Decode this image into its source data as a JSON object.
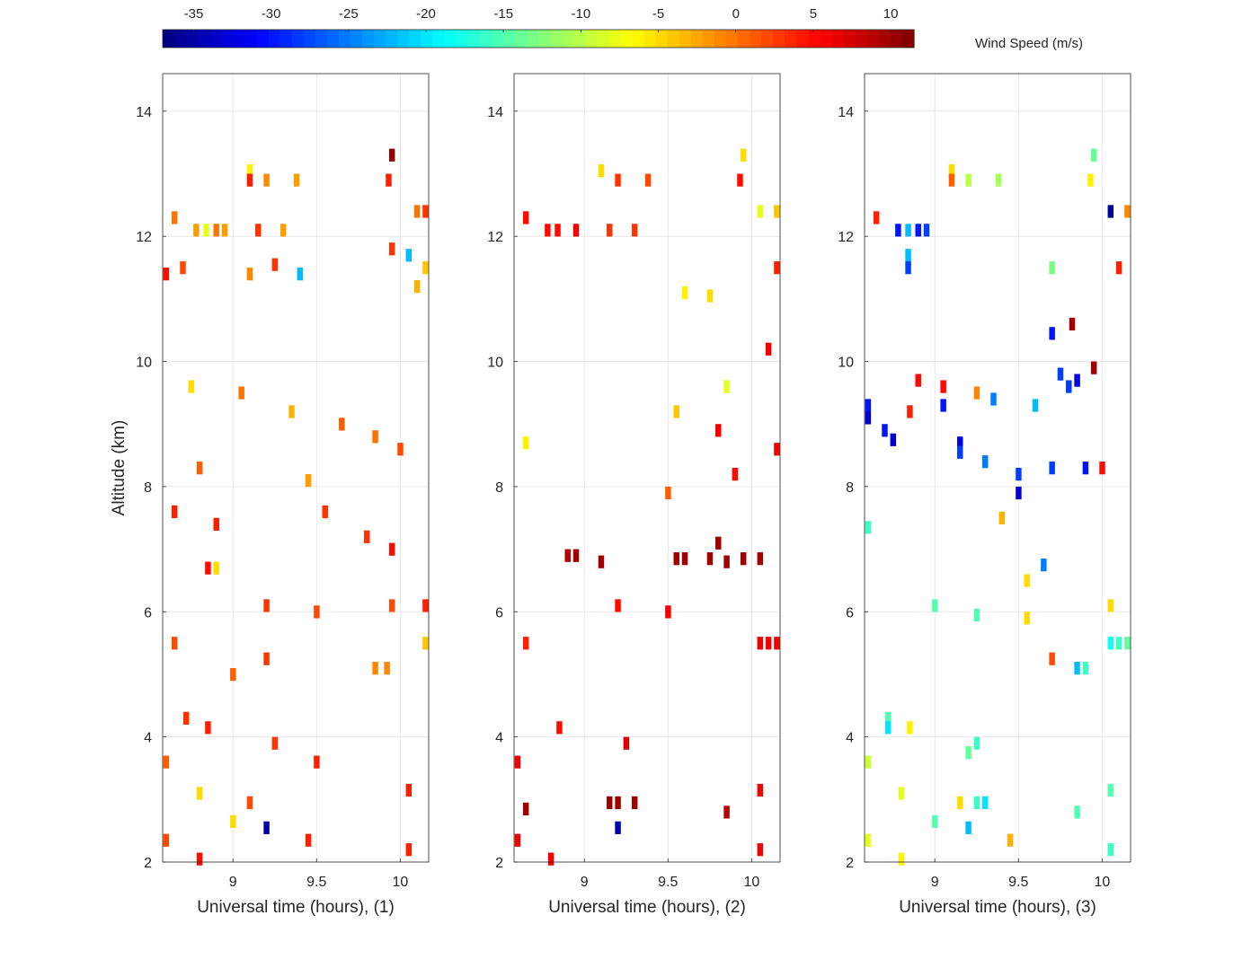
{
  "colorbar": {
    "label": "Wind Speed (m/s)",
    "range": [
      -37,
      11.5
    ],
    "ticks": [
      -35,
      -30,
      -25,
      -20,
      -15,
      -10,
      -5,
      0,
      5,
      10
    ],
    "tick_labels": [
      "-35",
      "-30",
      "-25",
      "-20",
      "-15",
      "-10",
      "-5",
      "0",
      "5",
      "10"
    ],
    "colormap": "jet"
  },
  "chart_data": [
    {
      "type": "heatmap",
      "title": "",
      "xlabel": "Universal time (hours), (1)",
      "ylabel": "Altitude (km)",
      "xlim": [
        8.58,
        10.17
      ],
      "ylim": [
        2,
        14.6
      ],
      "xticks": [
        "9",
        "9.5",
        "10"
      ],
      "yticks": [
        "2",
        "4",
        "6",
        "8",
        "10",
        "12",
        "14"
      ],
      "grid": true,
      "cells": [
        {
          "x": 9.95,
          "y": 13.3,
          "value": 10.5
        },
        {
          "x": 9.1,
          "y": 13.05,
          "value": -6
        },
        {
          "x": 9.1,
          "y": 12.9,
          "value": 4
        },
        {
          "x": 9.2,
          "y": 12.9,
          "value": -1
        },
        {
          "x": 9.38,
          "y": 12.9,
          "value": -2
        },
        {
          "x": 9.93,
          "y": 12.9,
          "value": 4
        },
        {
          "x": 10.1,
          "y": 12.4,
          "value": 0
        },
        {
          "x": 10.15,
          "y": 12.4,
          "value": 3
        },
        {
          "x": 8.65,
          "y": 12.3,
          "value": 0
        },
        {
          "x": 8.78,
          "y": 12.1,
          "value": -2
        },
        {
          "x": 8.84,
          "y": 12.1,
          "value": -8
        },
        {
          "x": 8.9,
          "y": 12.1,
          "value": 0
        },
        {
          "x": 8.95,
          "y": 12.1,
          "value": -2
        },
        {
          "x": 9.15,
          "y": 12.1,
          "value": 3
        },
        {
          "x": 9.3,
          "y": 12.1,
          "value": -2
        },
        {
          "x": 10.05,
          "y": 11.7,
          "value": -22
        },
        {
          "x": 8.6,
          "y": 11.4,
          "value": 5
        },
        {
          "x": 9.4,
          "y": 11.4,
          "value": -22
        },
        {
          "x": 9.25,
          "y": 11.55,
          "value": 3
        },
        {
          "x": 10.15,
          "y": 11.5,
          "value": -4
        },
        {
          "x": 9.95,
          "y": 11.8,
          "value": 3
        },
        {
          "x": 8.7,
          "y": 11.5,
          "value": 2
        },
        {
          "x": 9.1,
          "y": 11.4,
          "value": -1
        },
        {
          "x": 10.1,
          "y": 11.2,
          "value": -3
        },
        {
          "x": 8.75,
          "y": 9.6,
          "value": -5
        },
        {
          "x": 9.05,
          "y": 9.5,
          "value": 0
        },
        {
          "x": 9.35,
          "y": 9.2,
          "value": -3
        },
        {
          "x": 9.65,
          "y": 9.0,
          "value": 1
        },
        {
          "x": 9.85,
          "y": 8.8,
          "value": 0
        },
        {
          "x": 10.0,
          "y": 8.6,
          "value": 2
        },
        {
          "x": 8.8,
          "y": 8.3,
          "value": 1
        },
        {
          "x": 9.45,
          "y": 8.1,
          "value": -2
        },
        {
          "x": 8.65,
          "y": 7.6,
          "value": 4
        },
        {
          "x": 8.9,
          "y": 7.4,
          "value": 4
        },
        {
          "x": 9.55,
          "y": 7.6,
          "value": 3
        },
        {
          "x": 9.8,
          "y": 7.2,
          "value": 3
        },
        {
          "x": 9.95,
          "y": 7.0,
          "value": 5
        },
        {
          "x": 8.85,
          "y": 6.7,
          "value": 5
        },
        {
          "x": 8.9,
          "y": 6.7,
          "value": -5
        },
        {
          "x": 9.2,
          "y": 6.1,
          "value": 3
        },
        {
          "x": 9.5,
          "y": 6.0,
          "value": 2
        },
        {
          "x": 9.95,
          "y": 6.1,
          "value": 2
        },
        {
          "x": 10.15,
          "y": 6.1,
          "value": 4
        },
        {
          "x": 10.15,
          "y": 5.5,
          "value": -4
        },
        {
          "x": 8.65,
          "y": 5.5,
          "value": 2
        },
        {
          "x": 9.0,
          "y": 5.0,
          "value": 1
        },
        {
          "x": 9.2,
          "y": 5.25,
          "value": 3
        },
        {
          "x": 9.85,
          "y": 5.1,
          "value": -1
        },
        {
          "x": 9.92,
          "y": 5.1,
          "value": -1
        },
        {
          "x": 8.72,
          "y": 4.3,
          "value": 3
        },
        {
          "x": 8.85,
          "y": 4.15,
          "value": 4
        },
        {
          "x": 9.25,
          "y": 3.9,
          "value": 3
        },
        {
          "x": 9.5,
          "y": 3.6,
          "value": 4
        },
        {
          "x": 8.6,
          "y": 3.6,
          "value": 1
        },
        {
          "x": 8.8,
          "y": 3.1,
          "value": -5
        },
        {
          "x": 9.1,
          "y": 2.95,
          "value": 2
        },
        {
          "x": 9.2,
          "y": 2.55,
          "value": -35
        },
        {
          "x": 9.0,
          "y": 2.65,
          "value": -5
        },
        {
          "x": 8.6,
          "y": 2.35,
          "value": 2
        },
        {
          "x": 8.8,
          "y": 2.05,
          "value": 5
        },
        {
          "x": 9.45,
          "y": 2.35,
          "value": 4
        },
        {
          "x": 10.05,
          "y": 2.2,
          "value": 4
        },
        {
          "x": 10.05,
          "y": 3.15,
          "value": 4
        }
      ]
    },
    {
      "type": "heatmap",
      "title": "",
      "xlabel": "Universal time (hours), (2)",
      "ylabel": "",
      "xlim": [
        8.58,
        10.17
      ],
      "ylim": [
        2,
        14.6
      ],
      "xticks": [
        "9",
        "9.5",
        "10"
      ],
      "yticks": [
        "2",
        "4",
        "6",
        "8",
        "10",
        "12",
        "14"
      ],
      "grid": true,
      "cells": [
        {
          "x": 9.95,
          "y": 13.3,
          "value": -5
        },
        {
          "x": 9.1,
          "y": 13.05,
          "value": -5
        },
        {
          "x": 9.2,
          "y": 12.9,
          "value": 3
        },
        {
          "x": 9.38,
          "y": 12.9,
          "value": 2
        },
        {
          "x": 9.93,
          "y": 12.9,
          "value": 5
        },
        {
          "x": 10.05,
          "y": 12.4,
          "value": -8
        },
        {
          "x": 10.15,
          "y": 12.4,
          "value": -4
        },
        {
          "x": 8.65,
          "y": 12.3,
          "value": 5
        },
        {
          "x": 8.78,
          "y": 12.1,
          "value": 5
        },
        {
          "x": 8.84,
          "y": 12.1,
          "value": 5
        },
        {
          "x": 8.95,
          "y": 12.1,
          "value": 6
        },
        {
          "x": 9.3,
          "y": 12.1,
          "value": 3
        },
        {
          "x": 9.15,
          "y": 12.1,
          "value": 3
        },
        {
          "x": 10.15,
          "y": 11.5,
          "value": 4
        },
        {
          "x": 9.6,
          "y": 11.1,
          "value": -6
        },
        {
          "x": 9.75,
          "y": 11.05,
          "value": -5
        },
        {
          "x": 9.85,
          "y": 9.6,
          "value": -8
        },
        {
          "x": 10.1,
          "y": 10.2,
          "value": 6
        },
        {
          "x": 9.55,
          "y": 9.2,
          "value": -4
        },
        {
          "x": 9.8,
          "y": 8.9,
          "value": 6
        },
        {
          "x": 10.15,
          "y": 8.6,
          "value": 6
        },
        {
          "x": 8.65,
          "y": 8.7,
          "value": -6
        },
        {
          "x": 9.9,
          "y": 8.2,
          "value": 5
        },
        {
          "x": 9.5,
          "y": 7.9,
          "value": 1
        },
        {
          "x": 8.9,
          "y": 6.9,
          "value": 9
        },
        {
          "x": 8.95,
          "y": 6.9,
          "value": 10
        },
        {
          "x": 9.1,
          "y": 6.8,
          "value": 10
        },
        {
          "x": 9.55,
          "y": 6.85,
          "value": 10
        },
        {
          "x": 9.6,
          "y": 6.85,
          "value": 10
        },
        {
          "x": 9.75,
          "y": 6.85,
          "value": 10
        },
        {
          "x": 9.8,
          "y": 7.1,
          "value": 10
        },
        {
          "x": 9.85,
          "y": 6.8,
          "value": 10
        },
        {
          "x": 9.95,
          "y": 6.85,
          "value": 10
        },
        {
          "x": 10.05,
          "y": 6.85,
          "value": 10
        },
        {
          "x": 9.2,
          "y": 6.1,
          "value": 5
        },
        {
          "x": 9.5,
          "y": 6.0,
          "value": 6
        },
        {
          "x": 10.05,
          "y": 5.5,
          "value": 6
        },
        {
          "x": 10.1,
          "y": 5.5,
          "value": 6
        },
        {
          "x": 10.15,
          "y": 5.5,
          "value": 6
        },
        {
          "x": 8.65,
          "y": 5.5,
          "value": 4
        },
        {
          "x": 8.85,
          "y": 4.15,
          "value": 5
        },
        {
          "x": 9.25,
          "y": 3.9,
          "value": 7
        },
        {
          "x": 8.6,
          "y": 3.6,
          "value": 6
        },
        {
          "x": 8.65,
          "y": 2.85,
          "value": 10
        },
        {
          "x": 9.15,
          "y": 2.95,
          "value": 10
        },
        {
          "x": 9.2,
          "y": 2.95,
          "value": 10
        },
        {
          "x": 9.3,
          "y": 2.95,
          "value": 10
        },
        {
          "x": 9.2,
          "y": 2.55,
          "value": -35
        },
        {
          "x": 9.85,
          "y": 2.8,
          "value": 9
        },
        {
          "x": 8.6,
          "y": 2.35,
          "value": 6
        },
        {
          "x": 8.8,
          "y": 2.05,
          "value": 6
        },
        {
          "x": 10.05,
          "y": 2.2,
          "value": 6
        },
        {
          "x": 10.05,
          "y": 3.15,
          "value": 6
        }
      ]
    },
    {
      "type": "heatmap",
      "title": "",
      "xlabel": "Universal time (hours), (3)",
      "ylabel": "",
      "xlim": [
        8.58,
        10.17
      ],
      "ylim": [
        2,
        14.6
      ],
      "xticks": [
        "9",
        "9.5",
        "10"
      ],
      "yticks": [
        "2",
        "4",
        "6",
        "8",
        "10",
        "12",
        "14"
      ],
      "grid": true,
      "cells": [
        {
          "x": 9.95,
          "y": 13.3,
          "value": -14
        },
        {
          "x": 9.1,
          "y": 13.05,
          "value": -5
        },
        {
          "x": 9.1,
          "y": 12.9,
          "value": 1
        },
        {
          "x": 9.2,
          "y": 12.9,
          "value": -10
        },
        {
          "x": 9.38,
          "y": 12.9,
          "value": -11
        },
        {
          "x": 9.93,
          "y": 12.9,
          "value": -6
        },
        {
          "x": 10.05,
          "y": 12.4,
          "value": -36
        },
        {
          "x": 10.15,
          "y": 12.4,
          "value": -1
        },
        {
          "x": 8.65,
          "y": 12.3,
          "value": 4
        },
        {
          "x": 8.78,
          "y": 12.1,
          "value": -30
        },
        {
          "x": 8.84,
          "y": 12.1,
          "value": -22
        },
        {
          "x": 8.9,
          "y": 12.1,
          "value": -30
        },
        {
          "x": 8.95,
          "y": 12.1,
          "value": -28
        },
        {
          "x": 8.84,
          "y": 11.7,
          "value": -22
        },
        {
          "x": 8.84,
          "y": 11.5,
          "value": -28
        },
        {
          "x": 9.7,
          "y": 11.5,
          "value": -13
        },
        {
          "x": 10.1,
          "y": 11.5,
          "value": 4
        },
        {
          "x": 9.82,
          "y": 10.6,
          "value": 10
        },
        {
          "x": 9.7,
          "y": 10.45,
          "value": -30
        },
        {
          "x": 9.95,
          "y": 9.9,
          "value": 10
        },
        {
          "x": 9.75,
          "y": 9.8,
          "value": -28
        },
        {
          "x": 9.85,
          "y": 9.7,
          "value": -32
        },
        {
          "x": 9.8,
          "y": 9.6,
          "value": -28
        },
        {
          "x": 8.6,
          "y": 9.3,
          "value": -30
        },
        {
          "x": 8.6,
          "y": 9.1,
          "value": -33
        },
        {
          "x": 8.7,
          "y": 8.9,
          "value": -30
        },
        {
          "x": 8.75,
          "y": 8.75,
          "value": -33
        },
        {
          "x": 9.15,
          "y": 8.7,
          "value": -32
        },
        {
          "x": 9.15,
          "y": 8.55,
          "value": -28
        },
        {
          "x": 9.3,
          "y": 8.4,
          "value": -25
        },
        {
          "x": 9.05,
          "y": 9.3,
          "value": -30
        },
        {
          "x": 9.5,
          "y": 8.2,
          "value": -28
        },
        {
          "x": 9.5,
          "y": 7.9,
          "value": -33
        },
        {
          "x": 9.35,
          "y": 9.4,
          "value": -25
        },
        {
          "x": 9.6,
          "y": 9.3,
          "value": -22
        },
        {
          "x": 9.7,
          "y": 8.3,
          "value": -28
        },
        {
          "x": 9.9,
          "y": 8.3,
          "value": -30
        },
        {
          "x": 10.0,
          "y": 8.3,
          "value": 5
        },
        {
          "x": 9.05,
          "y": 9.6,
          "value": 5
        },
        {
          "x": 8.9,
          "y": 9.7,
          "value": 5
        },
        {
          "x": 8.85,
          "y": 9.2,
          "value": 4
        },
        {
          "x": 9.25,
          "y": 9.5,
          "value": -1
        },
        {
          "x": 9.65,
          "y": 6.75,
          "value": -25
        },
        {
          "x": 9.55,
          "y": 6.5,
          "value": -5
        },
        {
          "x": 9.4,
          "y": 7.5,
          "value": -3
        },
        {
          "x": 8.6,
          "y": 7.35,
          "value": -16
        },
        {
          "x": 9.0,
          "y": 6.1,
          "value": -15
        },
        {
          "x": 9.25,
          "y": 5.95,
          "value": -15
        },
        {
          "x": 9.55,
          "y": 5.9,
          "value": -5
        },
        {
          "x": 10.05,
          "y": 6.1,
          "value": -5
        },
        {
          "x": 10.05,
          "y": 5.5,
          "value": -18
        },
        {
          "x": 10.1,
          "y": 5.5,
          "value": -16
        },
        {
          "x": 10.15,
          "y": 5.5,
          "value": -14
        },
        {
          "x": 9.85,
          "y": 5.1,
          "value": -22
        },
        {
          "x": 9.9,
          "y": 5.1,
          "value": -16
        },
        {
          "x": 9.7,
          "y": 5.25,
          "value": 2
        },
        {
          "x": 8.72,
          "y": 4.3,
          "value": -15
        },
        {
          "x": 8.72,
          "y": 4.15,
          "value": -20
        },
        {
          "x": 8.85,
          "y": 4.15,
          "value": -6
        },
        {
          "x": 9.25,
          "y": 3.9,
          "value": -16
        },
        {
          "x": 9.2,
          "y": 3.75,
          "value": -14
        },
        {
          "x": 8.6,
          "y": 3.6,
          "value": -9
        },
        {
          "x": 8.8,
          "y": 3.1,
          "value": -8
        },
        {
          "x": 9.15,
          "y": 2.95,
          "value": -5
        },
        {
          "x": 9.25,
          "y": 2.95,
          "value": -16
        },
        {
          "x": 9.3,
          "y": 2.95,
          "value": -20
        },
        {
          "x": 9.2,
          "y": 2.55,
          "value": -22
        },
        {
          "x": 9.0,
          "y": 2.65,
          "value": -15
        },
        {
          "x": 9.85,
          "y": 2.8,
          "value": -15
        },
        {
          "x": 8.6,
          "y": 2.35,
          "value": -8
        },
        {
          "x": 8.8,
          "y": 2.05,
          "value": -6
        },
        {
          "x": 9.45,
          "y": 2.35,
          "value": -3
        },
        {
          "x": 10.05,
          "y": 2.2,
          "value": -16
        },
        {
          "x": 10.05,
          "y": 3.15,
          "value": -15
        }
      ]
    }
  ]
}
